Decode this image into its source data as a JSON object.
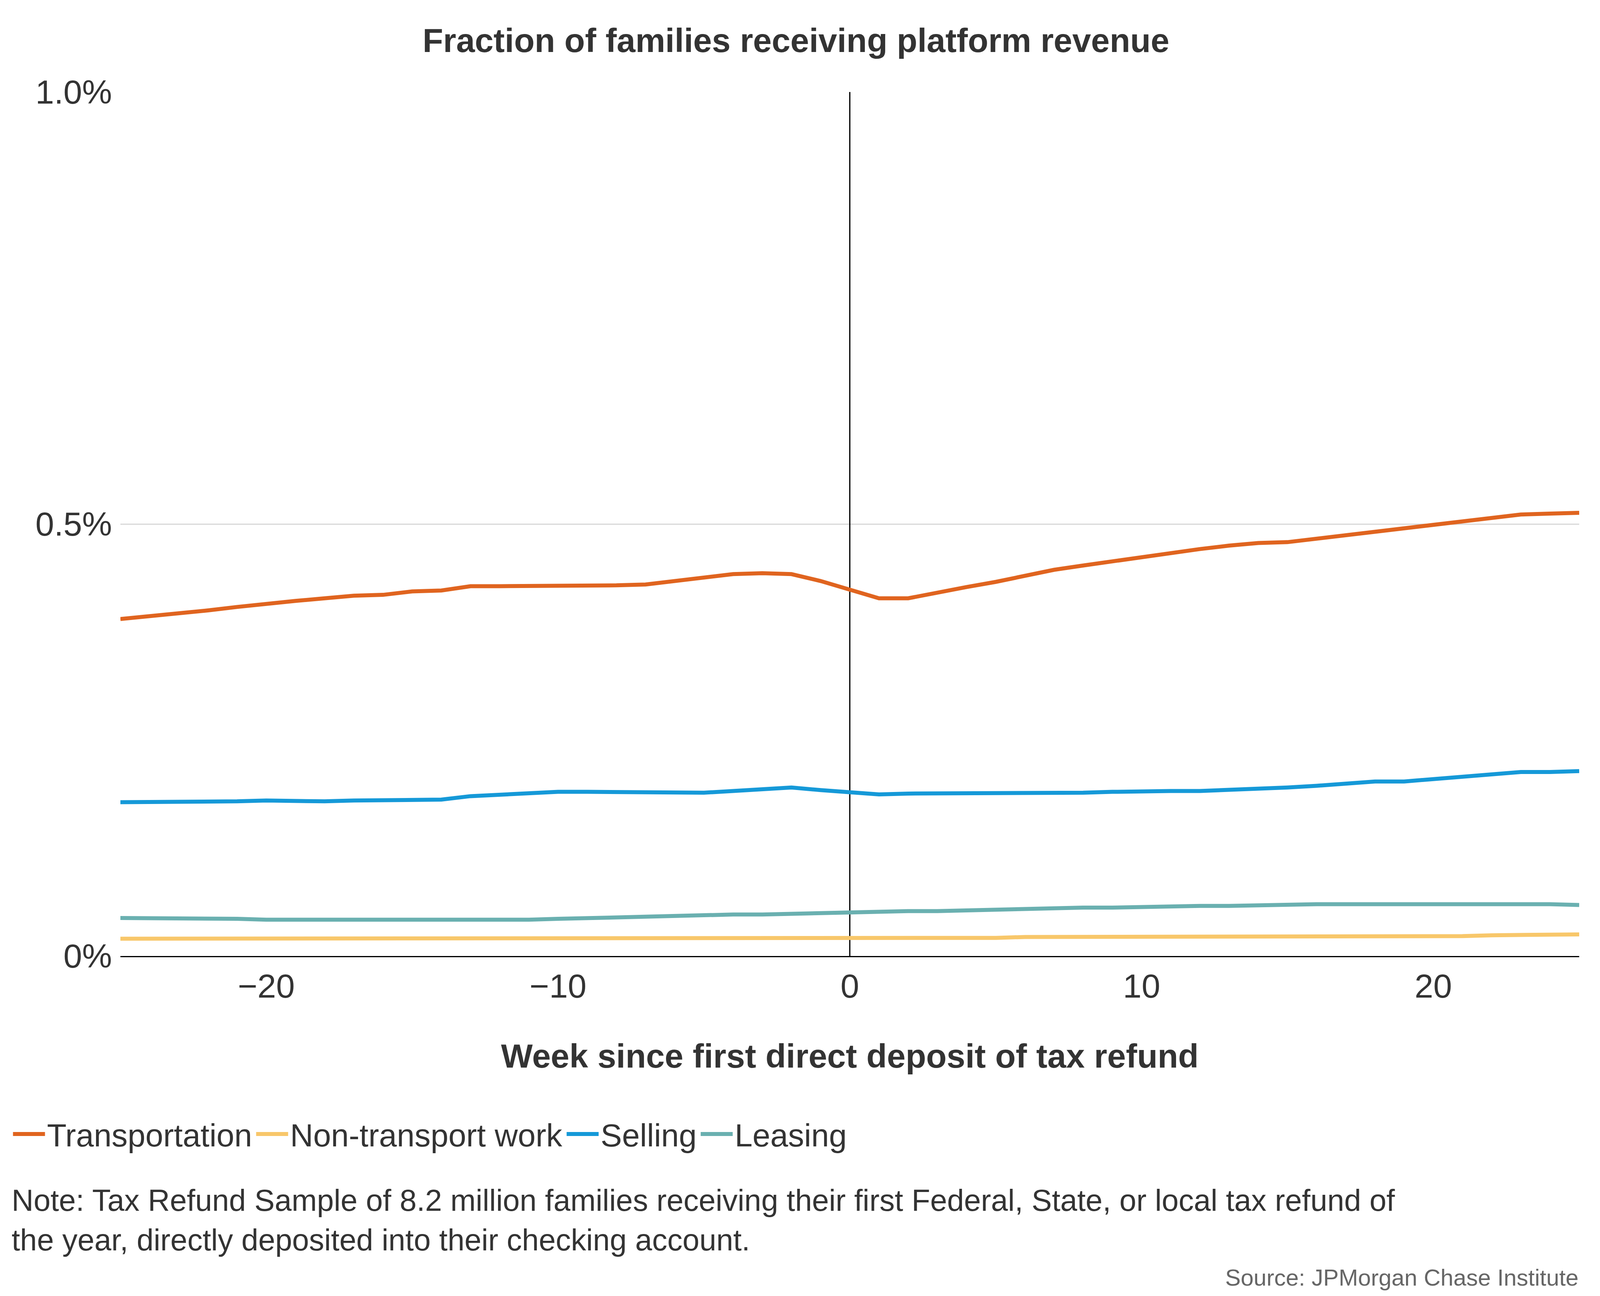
{
  "chart_data": {
    "type": "line",
    "title": "Fraction of families receiving platform revenue",
    "xlabel": "Week since first direct deposit of tax refund",
    "x": [
      -25,
      -24,
      -23,
      -22,
      -21,
      -20,
      -19,
      -18,
      -17,
      -16,
      -15,
      -14,
      -13,
      -12,
      -11,
      -10,
      -9,
      -8,
      -7,
      -6,
      -5,
      -4,
      -3,
      -2,
      -1,
      0,
      1,
      2,
      3,
      4,
      5,
      6,
      7,
      8,
      9,
      10,
      11,
      12,
      13,
      14,
      15,
      16,
      17,
      18,
      19,
      20,
      21,
      22,
      23,
      24,
      25
    ],
    "series": [
      {
        "name": "Transportation",
        "color": "#e0641f",
        "values": [
          0.39,
          0.393,
          0.396,
          0.4,
          0.404,
          0.408,
          0.411,
          0.414,
          0.417,
          0.418,
          0.422,
          0.423,
          0.428,
          0.428,
          0.428,
          0.429,
          0.428,
          0.429,
          0.43,
          0.434,
          0.438,
          0.442,
          0.443,
          0.442,
          0.434,
          0.424,
          0.414,
          0.414,
          0.421,
          0.427,
          0.433,
          0.44,
          0.447,
          0.452,
          0.457,
          0.462,
          0.467,
          0.471,
          0.475,
          0.478,
          0.479,
          0.483,
          0.487,
          0.491,
          0.496,
          0.5,
          0.504,
          0.508,
          0.511,
          0.512,
          0.513
        ]
      },
      {
        "name": "Non-transport work",
        "color": "#f8c76a",
        "values": [
          0.02,
          0.02,
          0.02,
          0.02,
          0.02,
          0.02,
          0.02,
          0.02,
          0.02,
          0.02,
          0.02,
          0.02,
          0.02,
          0.02,
          0.02,
          0.02,
          0.02,
          0.02,
          0.02,
          0.02,
          0.021,
          0.021,
          0.021,
          0.021,
          0.021,
          0.021,
          0.021,
          0.021,
          0.021,
          0.021,
          0.021,
          0.022,
          0.022,
          0.022,
          0.022,
          0.022,
          0.022,
          0.022,
          0.022,
          0.022,
          0.022,
          0.023,
          0.023,
          0.023,
          0.023,
          0.023,
          0.023,
          0.024,
          0.024,
          0.024,
          0.025
        ]
      },
      {
        "name": "Selling",
        "color": "#1599d8",
        "values": [
          0.178,
          0.178,
          0.178,
          0.179,
          0.179,
          0.18,
          0.179,
          0.179,
          0.18,
          0.18,
          0.181,
          0.181,
          0.185,
          0.187,
          0.189,
          0.19,
          0.19,
          0.19,
          0.189,
          0.189,
          0.189,
          0.191,
          0.193,
          0.195,
          0.192,
          0.19,
          0.187,
          0.188,
          0.188,
          0.188,
          0.188,
          0.188,
          0.189,
          0.189,
          0.19,
          0.191,
          0.191,
          0.191,
          0.192,
          0.194,
          0.195,
          0.197,
          0.199,
          0.202,
          0.202,
          0.205,
          0.208,
          0.211,
          0.213,
          0.213,
          0.214
        ]
      },
      {
        "name": "Leasing",
        "color": "#6ab0b0",
        "values": [
          0.044,
          0.044,
          0.043,
          0.043,
          0.043,
          0.042,
          0.042,
          0.041,
          0.042,
          0.042,
          0.042,
          0.042,
          0.042,
          0.042,
          0.042,
          0.043,
          0.044,
          0.045,
          0.046,
          0.047,
          0.047,
          0.048,
          0.048,
          0.049,
          0.049,
          0.05,
          0.051,
          0.052,
          0.052,
          0.053,
          0.054,
          0.055,
          0.055,
          0.056,
          0.056,
          0.057,
          0.057,
          0.058,
          0.058,
          0.059,
          0.059,
          0.06,
          0.06,
          0.06,
          0.061,
          0.061,
          0.061,
          0.06,
          0.06,
          0.06,
          0.059
        ]
      }
    ],
    "xlim": [
      -25,
      25
    ],
    "xticks": [
      {
        "value": -20,
        "label": "−20"
      },
      {
        "value": -10,
        "label": "−10"
      },
      0,
      10,
      20
    ],
    "ylim": [
      0,
      1.0
    ],
    "yticks": [
      {
        "value": 0,
        "label": "0%"
      },
      {
        "value": 0.5,
        "label": "0.5%"
      },
      {
        "value": 1.0,
        "label": "1.0%"
      }
    ],
    "grid": true,
    "legend": "bottom",
    "note": [
      "Note: Tax Refund Sample of 8.2 million families receiving their first Federal, State, or local tax refund of",
      "the year, directly deposited into their checking account."
    ],
    "source": "Source: JPMorgan Chase Institute"
  }
}
